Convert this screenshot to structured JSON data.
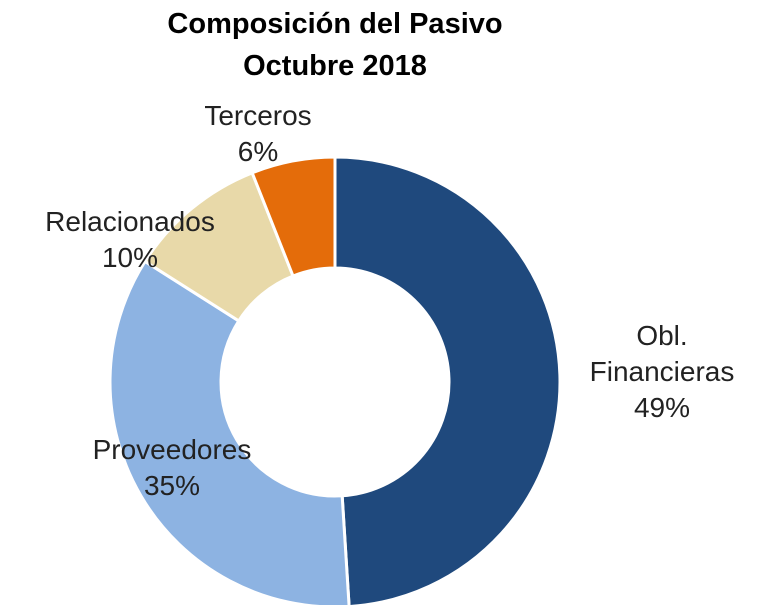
{
  "chart_data": {
    "type": "donut",
    "title": [
      "Composición del Pasivo",
      "Octubre 2018"
    ],
    "categories": [
      "Obl. Financieras",
      "Proveedores",
      "Relacionados",
      "Terceros"
    ],
    "values": [
      49,
      35,
      10,
      6
    ],
    "value_labels": [
      "49%",
      "35%",
      "10%",
      "6%"
    ],
    "colors": [
      "#1f497d",
      "#8db3e2",
      "#e8d9a9",
      "#e46c0a"
    ]
  }
}
